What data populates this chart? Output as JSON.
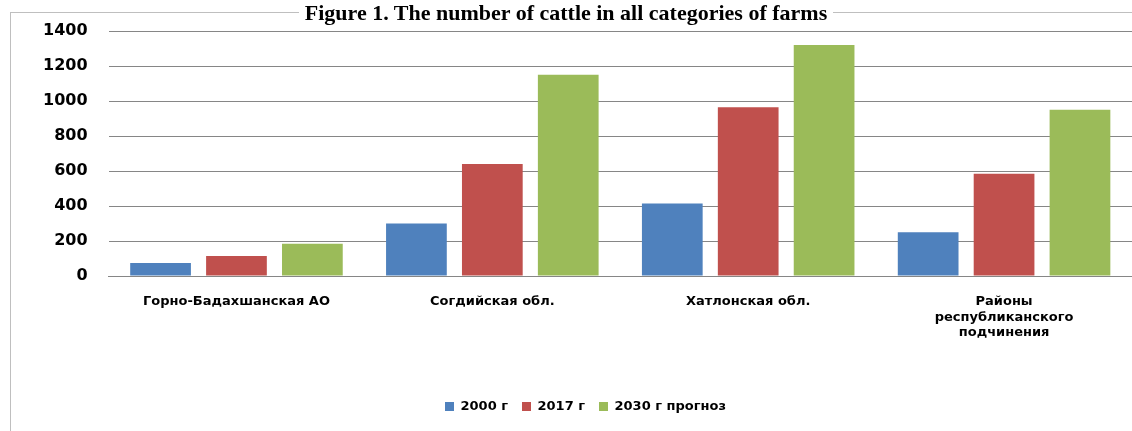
{
  "chart_data": {
    "type": "bar",
    "title": "Figure 1. The number of cattle in all categories of farms",
    "categories": [
      "Горно-Бадахшанская АО",
      "Согдийская обл.",
      "Хатлонская обл.",
      "Районы республиканского подчинения"
    ],
    "series": [
      {
        "name": "2000 г",
        "color": "#4f81bd",
        "values": [
          75,
          300,
          415,
          250
        ]
      },
      {
        "name": "2017 г",
        "color": "#c0504d",
        "values": [
          115,
          640,
          965,
          585
        ]
      },
      {
        "name": "2030 г прогноз",
        "color": "#9bbb59",
        "values": [
          185,
          1150,
          1320,
          950
        ]
      }
    ],
    "ylim": [
      0,
      1400
    ],
    "yticks": [
      0,
      200,
      400,
      600,
      800,
      1000,
      1200,
      1400
    ],
    "grid": "y",
    "legend": "bottom"
  }
}
